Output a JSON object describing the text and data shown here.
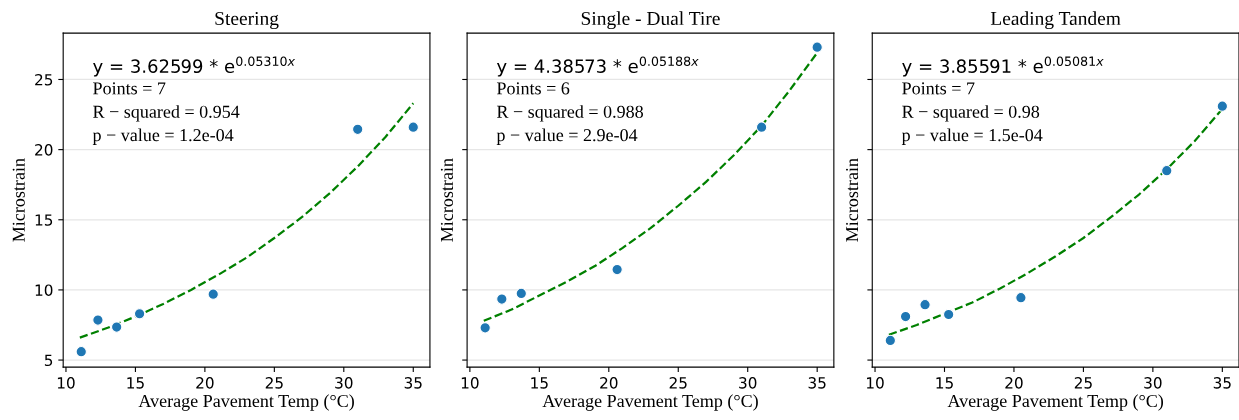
{
  "chart_data": [
    {
      "type": "scatter",
      "title": "Steering",
      "xlabel": "Average Pavement Temp (°C)",
      "ylabel": "Microstrain",
      "xlim": [
        9.8,
        36.2
      ],
      "xticks": [
        10,
        15,
        20,
        25,
        30,
        35
      ],
      "ylim": [
        4.5,
        28.3
      ],
      "yticks": [
        5,
        10,
        15,
        20,
        25
      ],
      "grid": "y",
      "annotations": [
        "y = 3.62599 * e$^{0.05310x}$",
        "Points = 7",
        "R − squared = 0.954",
        "p − value = 1.2e-04"
      ],
      "series": [
        {
          "color": "#1f77b4",
          "marker": "circle",
          "x": [
            11.1,
            12.3,
            13.65,
            15.3,
            20.6,
            31.0,
            35.0
          ],
          "values": [
            5.6,
            7.85,
            7.35,
            8.3,
            9.7,
            21.45,
            21.6
          ]
        },
        {
          "type": "line",
          "color": "#008000",
          "line_style": "dashed",
          "marker": "none",
          "x": [
            11,
            13,
            15,
            17,
            19,
            21,
            23,
            25,
            27,
            29,
            31,
            33,
            35
          ],
          "values": [
            6.6,
            7.3,
            8.1,
            9.0,
            10.0,
            11.1,
            12.3,
            13.7,
            15.2,
            16.9,
            18.8,
            20.9,
            23.3
          ]
        }
      ]
    },
    {
      "type": "scatter",
      "title": "Single - Dual Tire",
      "xlabel": "Average Pavement Temp (°C)",
      "ylabel": "Microstrain",
      "xlim": [
        9.8,
        36.2
      ],
      "xticks": [
        10,
        15,
        20,
        25,
        30,
        35
      ],
      "ylim": [
        4.5,
        28.3
      ],
      "yticks": [
        5,
        10,
        15,
        20,
        25
      ],
      "grid": "y",
      "tick_labels": "x",
      "annotations": [
        "y = 4.38573 * e$^{0.05188x}$",
        "Points = 6",
        "R − squared = 0.988",
        "p − value = 2.9e-04"
      ],
      "series": [
        {
          "color": "#1f77b4",
          "marker": "circle",
          "x": [
            11.1,
            12.3,
            13.7,
            20.6,
            31.0,
            35.0
          ],
          "values": [
            7.3,
            9.35,
            9.75,
            11.45,
            21.6,
            27.3
          ]
        },
        {
          "type": "line",
          "color": "#008000",
          "line_style": "dashed",
          "marker": "none",
          "x": [
            11,
            13,
            15,
            17,
            19,
            21,
            23,
            25,
            27,
            29,
            31,
            33,
            35
          ],
          "values": [
            7.8,
            8.6,
            9.6,
            10.6,
            11.7,
            13.0,
            14.4,
            16.0,
            17.7,
            19.6,
            21.7,
            24.2,
            26.9
          ]
        }
      ]
    },
    {
      "type": "scatter",
      "title": "Leading Tandem",
      "xlabel": "Average Pavement Temp (°C)",
      "ylabel": "Microstrain",
      "xlim": [
        9.8,
        36.2
      ],
      "xticks": [
        10,
        15,
        20,
        25,
        30,
        35
      ],
      "ylim": [
        4.5,
        28.3
      ],
      "yticks": [
        5,
        10,
        15,
        20,
        25
      ],
      "grid": "y",
      "tick_labels": "x",
      "annotations": [
        "y = 3.85591 * e$^{0.05081x}$",
        "Points = 7",
        "R − squared = 0.98",
        "p − value = 1.5e-04"
      ],
      "series": [
        {
          "color": "#1f77b4",
          "marker": "circle",
          "x": [
            11.1,
            12.2,
            13.6,
            15.3,
            20.5,
            31.0,
            35.0
          ],
          "values": [
            6.4,
            8.1,
            8.95,
            8.25,
            9.45,
            18.5,
            23.1
          ]
        },
        {
          "type": "line",
          "color": "#008000",
          "line_style": "dashed",
          "marker": "none",
          "x": [
            11,
            13,
            15,
            17,
            19,
            21,
            23,
            25,
            27,
            29,
            31,
            33,
            35
          ],
          "values": [
            6.8,
            7.5,
            8.3,
            9.1,
            10.1,
            11.2,
            12.4,
            13.7,
            15.2,
            16.8,
            18.6,
            20.6,
            22.9
          ]
        }
      ]
    }
  ]
}
